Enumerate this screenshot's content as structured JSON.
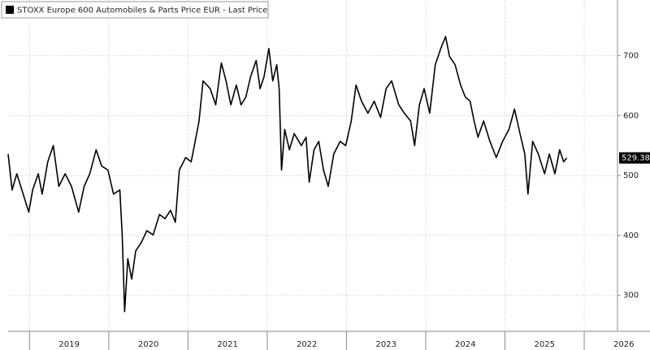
{
  "chart_data": {
    "type": "line",
    "legend_label": "STOXX Europe 600 Automobiles & Parts Price EUR - Last Price",
    "x": [
      2018.73,
      2018.78,
      2018.84,
      2018.92,
      2018.99,
      2019.04,
      2019.11,
      2019.16,
      2019.23,
      2019.3,
      2019.37,
      2019.45,
      2019.53,
      2019.62,
      2019.69,
      2019.76,
      2019.84,
      2019.91,
      2019.99,
      2020.06,
      2020.14,
      2020.17,
      2020.2,
      2020.24,
      2020.29,
      2020.34,
      2020.41,
      2020.48,
      2020.56,
      2020.64,
      2020.71,
      2020.78,
      2020.84,
      2020.89,
      2020.97,
      2021.04,
      2021.09,
      2021.14,
      2021.19,
      2021.28,
      2021.35,
      2021.42,
      2021.48,
      2021.54,
      2021.61,
      2021.67,
      2021.73,
      2021.79,
      2021.86,
      2021.91,
      2021.96,
      2022.02,
      2022.07,
      2022.12,
      2022.15,
      2022.18,
      2022.22,
      2022.28,
      2022.34,
      2022.43,
      2022.49,
      2022.53,
      2022.59,
      2022.65,
      2022.71,
      2022.77,
      2022.84,
      2022.92,
      2022.99,
      2023.06,
      2023.12,
      2023.19,
      2023.27,
      2023.35,
      2023.43,
      2023.5,
      2023.57,
      2023.66,
      2023.73,
      2023.81,
      2023.86,
      2023.92,
      2023.98,
      2024.05,
      2024.12,
      2024.19,
      2024.25,
      2024.3,
      2024.37,
      2024.44,
      2024.5,
      2024.56,
      2024.61,
      2024.66,
      2024.73,
      2024.81,
      2024.89,
      2024.97,
      2025.05,
      2025.12,
      2025.19,
      2025.25,
      2025.29,
      2025.35,
      2025.42,
      2025.5,
      2025.56,
      2025.63,
      2025.69,
      2025.74,
      2025.78
    ],
    "series": [
      {
        "name": "STOXX Europe 600 Automobiles & Parts Price EUR - Last Price",
        "color": "#000000",
        "values": [
          536,
          476,
          503,
          469,
          439,
          476,
          503,
          469,
          523,
          550,
          482,
          503,
          482,
          439,
          482,
          503,
          543,
          516,
          509,
          469,
          476,
          401,
          273,
          361,
          327,
          374,
          388,
          408,
          401,
          435,
          428,
          442,
          422,
          509,
          530,
          523,
          557,
          591,
          658,
          645,
          618,
          688,
          658,
          618,
          651,
          618,
          631,
          665,
          692,
          645,
          665,
          712,
          658,
          685,
          645,
          509,
          577,
          543,
          570,
          550,
          564,
          489,
          543,
          557,
          509,
          482,
          536,
          557,
          550,
          591,
          651,
          624,
          604,
          624,
          597,
          645,
          658,
          618,
          604,
          591,
          550,
          618,
          645,
          604,
          685,
          712,
          732,
          699,
          685,
          651,
          631,
          624,
          591,
          564,
          591,
          557,
          530,
          557,
          577,
          611,
          570,
          536,
          469,
          557,
          536,
          503,
          536,
          503,
          543,
          523,
          529.38
        ]
      }
    ],
    "xlim": [
      2018.73,
      2026.42
    ],
    "xticks": [
      2019,
      2020,
      2021,
      2022,
      2023,
      2024,
      2025,
      2026
    ],
    "ylim": [
      240,
      793
    ],
    "yticks": [
      300,
      400,
      500,
      600,
      700
    ],
    "grid": true
  }
}
